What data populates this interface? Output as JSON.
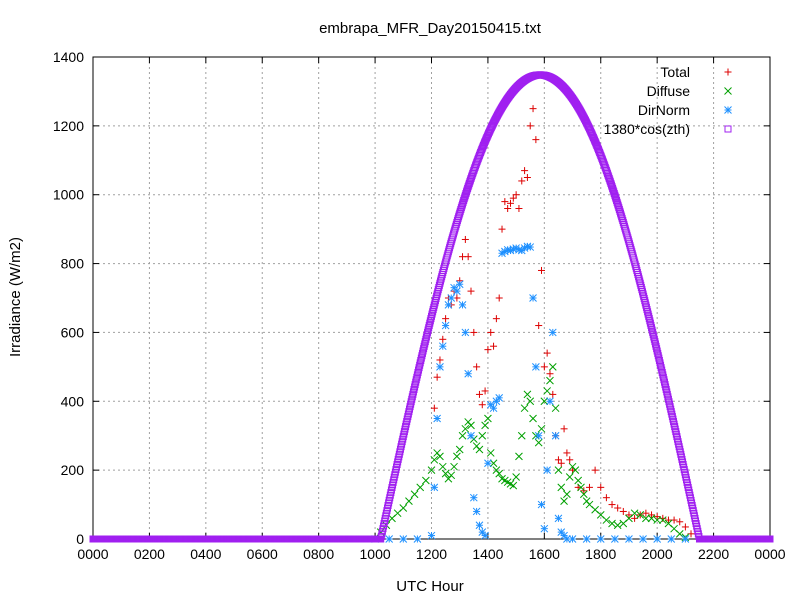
{
  "chart_data": {
    "type": "scatter",
    "title": "embrapa_MFR_Day20150415.txt",
    "xlabel": "UTC Hour",
    "ylabel": "Irradiance (W/m2)",
    "xlim": [
      0,
      24
    ],
    "ylim": [
      0,
      1400
    ],
    "x_ticks": [
      {
        "value": 0,
        "label": "0000"
      },
      {
        "value": 2,
        "label": "0200"
      },
      {
        "value": 4,
        "label": "0400"
      },
      {
        "value": 6,
        "label": "0600"
      },
      {
        "value": 8,
        "label": "0800"
      },
      {
        "value": 10,
        "label": "1000"
      },
      {
        "value": 12,
        "label": "1200"
      },
      {
        "value": 14,
        "label": "1400"
      },
      {
        "value": 16,
        "label": "1600"
      },
      {
        "value": 18,
        "label": "1800"
      },
      {
        "value": 20,
        "label": "2000"
      },
      {
        "value": 22,
        "label": "2200"
      },
      {
        "value": 24,
        "label": "0000"
      }
    ],
    "y_ticks": [
      0,
      200,
      400,
      600,
      800,
      1000,
      1200,
      1400
    ],
    "grid": true,
    "legend_position": "top-right",
    "series": [
      {
        "name": "Total",
        "marker": "plus",
        "color": "#dd0000",
        "points": [
          [
            12.1,
            380
          ],
          [
            12.2,
            470
          ],
          [
            12.3,
            520
          ],
          [
            12.4,
            580
          ],
          [
            12.5,
            640
          ],
          [
            12.6,
            700
          ],
          [
            12.7,
            680
          ],
          [
            12.8,
            720
          ],
          [
            12.9,
            700
          ],
          [
            13.0,
            750
          ],
          [
            13.1,
            820
          ],
          [
            13.2,
            870
          ],
          [
            13.3,
            820
          ],
          [
            13.4,
            720
          ],
          [
            13.5,
            600
          ],
          [
            13.6,
            500
          ],
          [
            13.7,
            420
          ],
          [
            13.8,
            390
          ],
          [
            13.9,
            430
          ],
          [
            14.0,
            550
          ],
          [
            14.1,
            600
          ],
          [
            14.2,
            560
          ],
          [
            14.3,
            640
          ],
          [
            14.4,
            700
          ],
          [
            14.5,
            900
          ],
          [
            14.6,
            980
          ],
          [
            14.7,
            960
          ],
          [
            14.8,
            975
          ],
          [
            14.9,
            990
          ],
          [
            15.0,
            1000
          ],
          [
            15.1,
            960
          ],
          [
            15.2,
            1040
          ],
          [
            15.3,
            1070
          ],
          [
            15.4,
            1050
          ],
          [
            15.5,
            1200
          ],
          [
            15.6,
            1250
          ],
          [
            15.7,
            1160
          ],
          [
            15.8,
            620
          ],
          [
            15.9,
            780
          ],
          [
            16.0,
            500
          ],
          [
            16.1,
            540
          ],
          [
            16.2,
            480
          ],
          [
            16.3,
            420
          ],
          [
            16.4,
            300
          ],
          [
            16.5,
            230
          ],
          [
            16.6,
            220
          ],
          [
            16.7,
            320
          ],
          [
            16.8,
            250
          ],
          [
            16.9,
            230
          ],
          [
            17.0,
            200
          ],
          [
            17.2,
            150
          ],
          [
            17.4,
            140
          ],
          [
            17.6,
            150
          ],
          [
            17.8,
            200
          ],
          [
            18.0,
            150
          ],
          [
            18.2,
            120
          ],
          [
            18.4,
            100
          ],
          [
            18.6,
            90
          ],
          [
            18.8,
            80
          ],
          [
            19.0,
            70
          ],
          [
            19.2,
            60
          ],
          [
            19.4,
            70
          ],
          [
            19.6,
            75
          ],
          [
            19.8,
            70
          ],
          [
            20.0,
            65
          ],
          [
            20.2,
            60
          ],
          [
            20.4,
            55
          ],
          [
            20.6,
            55
          ],
          [
            20.8,
            50
          ],
          [
            21.0,
            35
          ],
          [
            21.2,
            15
          ]
        ]
      },
      {
        "name": "Diffuse",
        "marker": "cross",
        "color": "#00a000",
        "points": [
          [
            10.2,
            20
          ],
          [
            10.4,
            40
          ],
          [
            10.6,
            60
          ],
          [
            10.8,
            75
          ],
          [
            11.0,
            90
          ],
          [
            11.2,
            110
          ],
          [
            11.4,
            130
          ],
          [
            11.6,
            150
          ],
          [
            11.8,
            170
          ],
          [
            12.0,
            200
          ],
          [
            12.1,
            230
          ],
          [
            12.2,
            250
          ],
          [
            12.3,
            240
          ],
          [
            12.4,
            210
          ],
          [
            12.5,
            190
          ],
          [
            12.6,
            175
          ],
          [
            12.7,
            185
          ],
          [
            12.8,
            210
          ],
          [
            12.9,
            240
          ],
          [
            13.0,
            260
          ],
          [
            13.1,
            300
          ],
          [
            13.2,
            320
          ],
          [
            13.3,
            340
          ],
          [
            13.4,
            330
          ],
          [
            13.5,
            290
          ],
          [
            13.6,
            270
          ],
          [
            13.7,
            260
          ],
          [
            13.8,
            300
          ],
          [
            13.9,
            330
          ],
          [
            14.0,
            350
          ],
          [
            14.1,
            250
          ],
          [
            14.2,
            220
          ],
          [
            14.3,
            200
          ],
          [
            14.4,
            190
          ],
          [
            14.5,
            175
          ],
          [
            14.6,
            170
          ],
          [
            14.7,
            165
          ],
          [
            14.8,
            160
          ],
          [
            14.9,
            155
          ],
          [
            15.0,
            180
          ],
          [
            15.1,
            240
          ],
          [
            15.2,
            300
          ],
          [
            15.3,
            380
          ],
          [
            15.4,
            420
          ],
          [
            15.5,
            400
          ],
          [
            15.6,
            350
          ],
          [
            15.7,
            300
          ],
          [
            15.8,
            280
          ],
          [
            15.9,
            320
          ],
          [
            16.0,
            400
          ],
          [
            16.1,
            430
          ],
          [
            16.2,
            460
          ],
          [
            16.3,
            500
          ],
          [
            16.4,
            380
          ],
          [
            16.5,
            200
          ],
          [
            16.6,
            150
          ],
          [
            16.7,
            110
          ],
          [
            16.8,
            130
          ],
          [
            16.9,
            180
          ],
          [
            17.0,
            210
          ],
          [
            17.1,
            200
          ],
          [
            17.2,
            170
          ],
          [
            17.3,
            150
          ],
          [
            17.4,
            130
          ],
          [
            17.5,
            110
          ],
          [
            17.6,
            100
          ],
          [
            17.8,
            85
          ],
          [
            18.0,
            70
          ],
          [
            18.2,
            55
          ],
          [
            18.4,
            45
          ],
          [
            18.6,
            40
          ],
          [
            18.8,
            45
          ],
          [
            19.0,
            60
          ],
          [
            19.2,
            75
          ],
          [
            19.4,
            70
          ],
          [
            19.6,
            60
          ],
          [
            19.8,
            60
          ],
          [
            20.0,
            55
          ],
          [
            20.2,
            55
          ],
          [
            20.4,
            45
          ],
          [
            20.6,
            30
          ],
          [
            20.8,
            15
          ],
          [
            21.0,
            5
          ]
        ]
      },
      {
        "name": "DirNorm",
        "marker": "star",
        "color": "#1e90ff",
        "points": [
          [
            10.0,
            0
          ],
          [
            10.5,
            0
          ],
          [
            11.0,
            0
          ],
          [
            11.5,
            0
          ],
          [
            12.0,
            10
          ],
          [
            12.1,
            150
          ],
          [
            12.2,
            350
          ],
          [
            12.3,
            500
          ],
          [
            12.4,
            560
          ],
          [
            12.5,
            620
          ],
          [
            12.6,
            680
          ],
          [
            12.7,
            700
          ],
          [
            12.8,
            730
          ],
          [
            12.9,
            720
          ],
          [
            13.0,
            740
          ],
          [
            13.1,
            680
          ],
          [
            13.2,
            600
          ],
          [
            13.3,
            480
          ],
          [
            13.4,
            300
          ],
          [
            13.5,
            120
          ],
          [
            13.6,
            80
          ],
          [
            13.7,
            40
          ],
          [
            13.8,
            20
          ],
          [
            13.9,
            10
          ],
          [
            14.0,
            220
          ],
          [
            14.1,
            390
          ],
          [
            14.2,
            380
          ],
          [
            14.3,
            400
          ],
          [
            14.4,
            410
          ],
          [
            14.5,
            830
          ],
          [
            14.6,
            835
          ],
          [
            14.7,
            840
          ],
          [
            14.8,
            838
          ],
          [
            14.9,
            842
          ],
          [
            15.0,
            845
          ],
          [
            15.1,
            840
          ],
          [
            15.2,
            838
          ],
          [
            15.3,
            845
          ],
          [
            15.4,
            850
          ],
          [
            15.5,
            848
          ],
          [
            15.6,
            700
          ],
          [
            15.7,
            500
          ],
          [
            15.8,
            300
          ],
          [
            15.9,
            100
          ],
          [
            16.0,
            30
          ],
          [
            16.1,
            200
          ],
          [
            16.2,
            400
          ],
          [
            16.3,
            600
          ],
          [
            16.4,
            300
          ],
          [
            16.5,
            60
          ],
          [
            16.6,
            20
          ],
          [
            16.7,
            10
          ],
          [
            16.8,
            0
          ],
          [
            17.0,
            0
          ],
          [
            17.5,
            0
          ],
          [
            18.0,
            0
          ],
          [
            18.5,
            0
          ],
          [
            19.0,
            0
          ],
          [
            19.5,
            0
          ],
          [
            20.0,
            0
          ],
          [
            20.5,
            0
          ],
          [
            21.0,
            0
          ]
        ]
      },
      {
        "name": "1380*cos(zth)",
        "marker": "square",
        "color": "#a020f0",
        "amplitude": 1348,
        "peak_hour": 15.85,
        "half_width_hours": 5.65
      }
    ]
  }
}
